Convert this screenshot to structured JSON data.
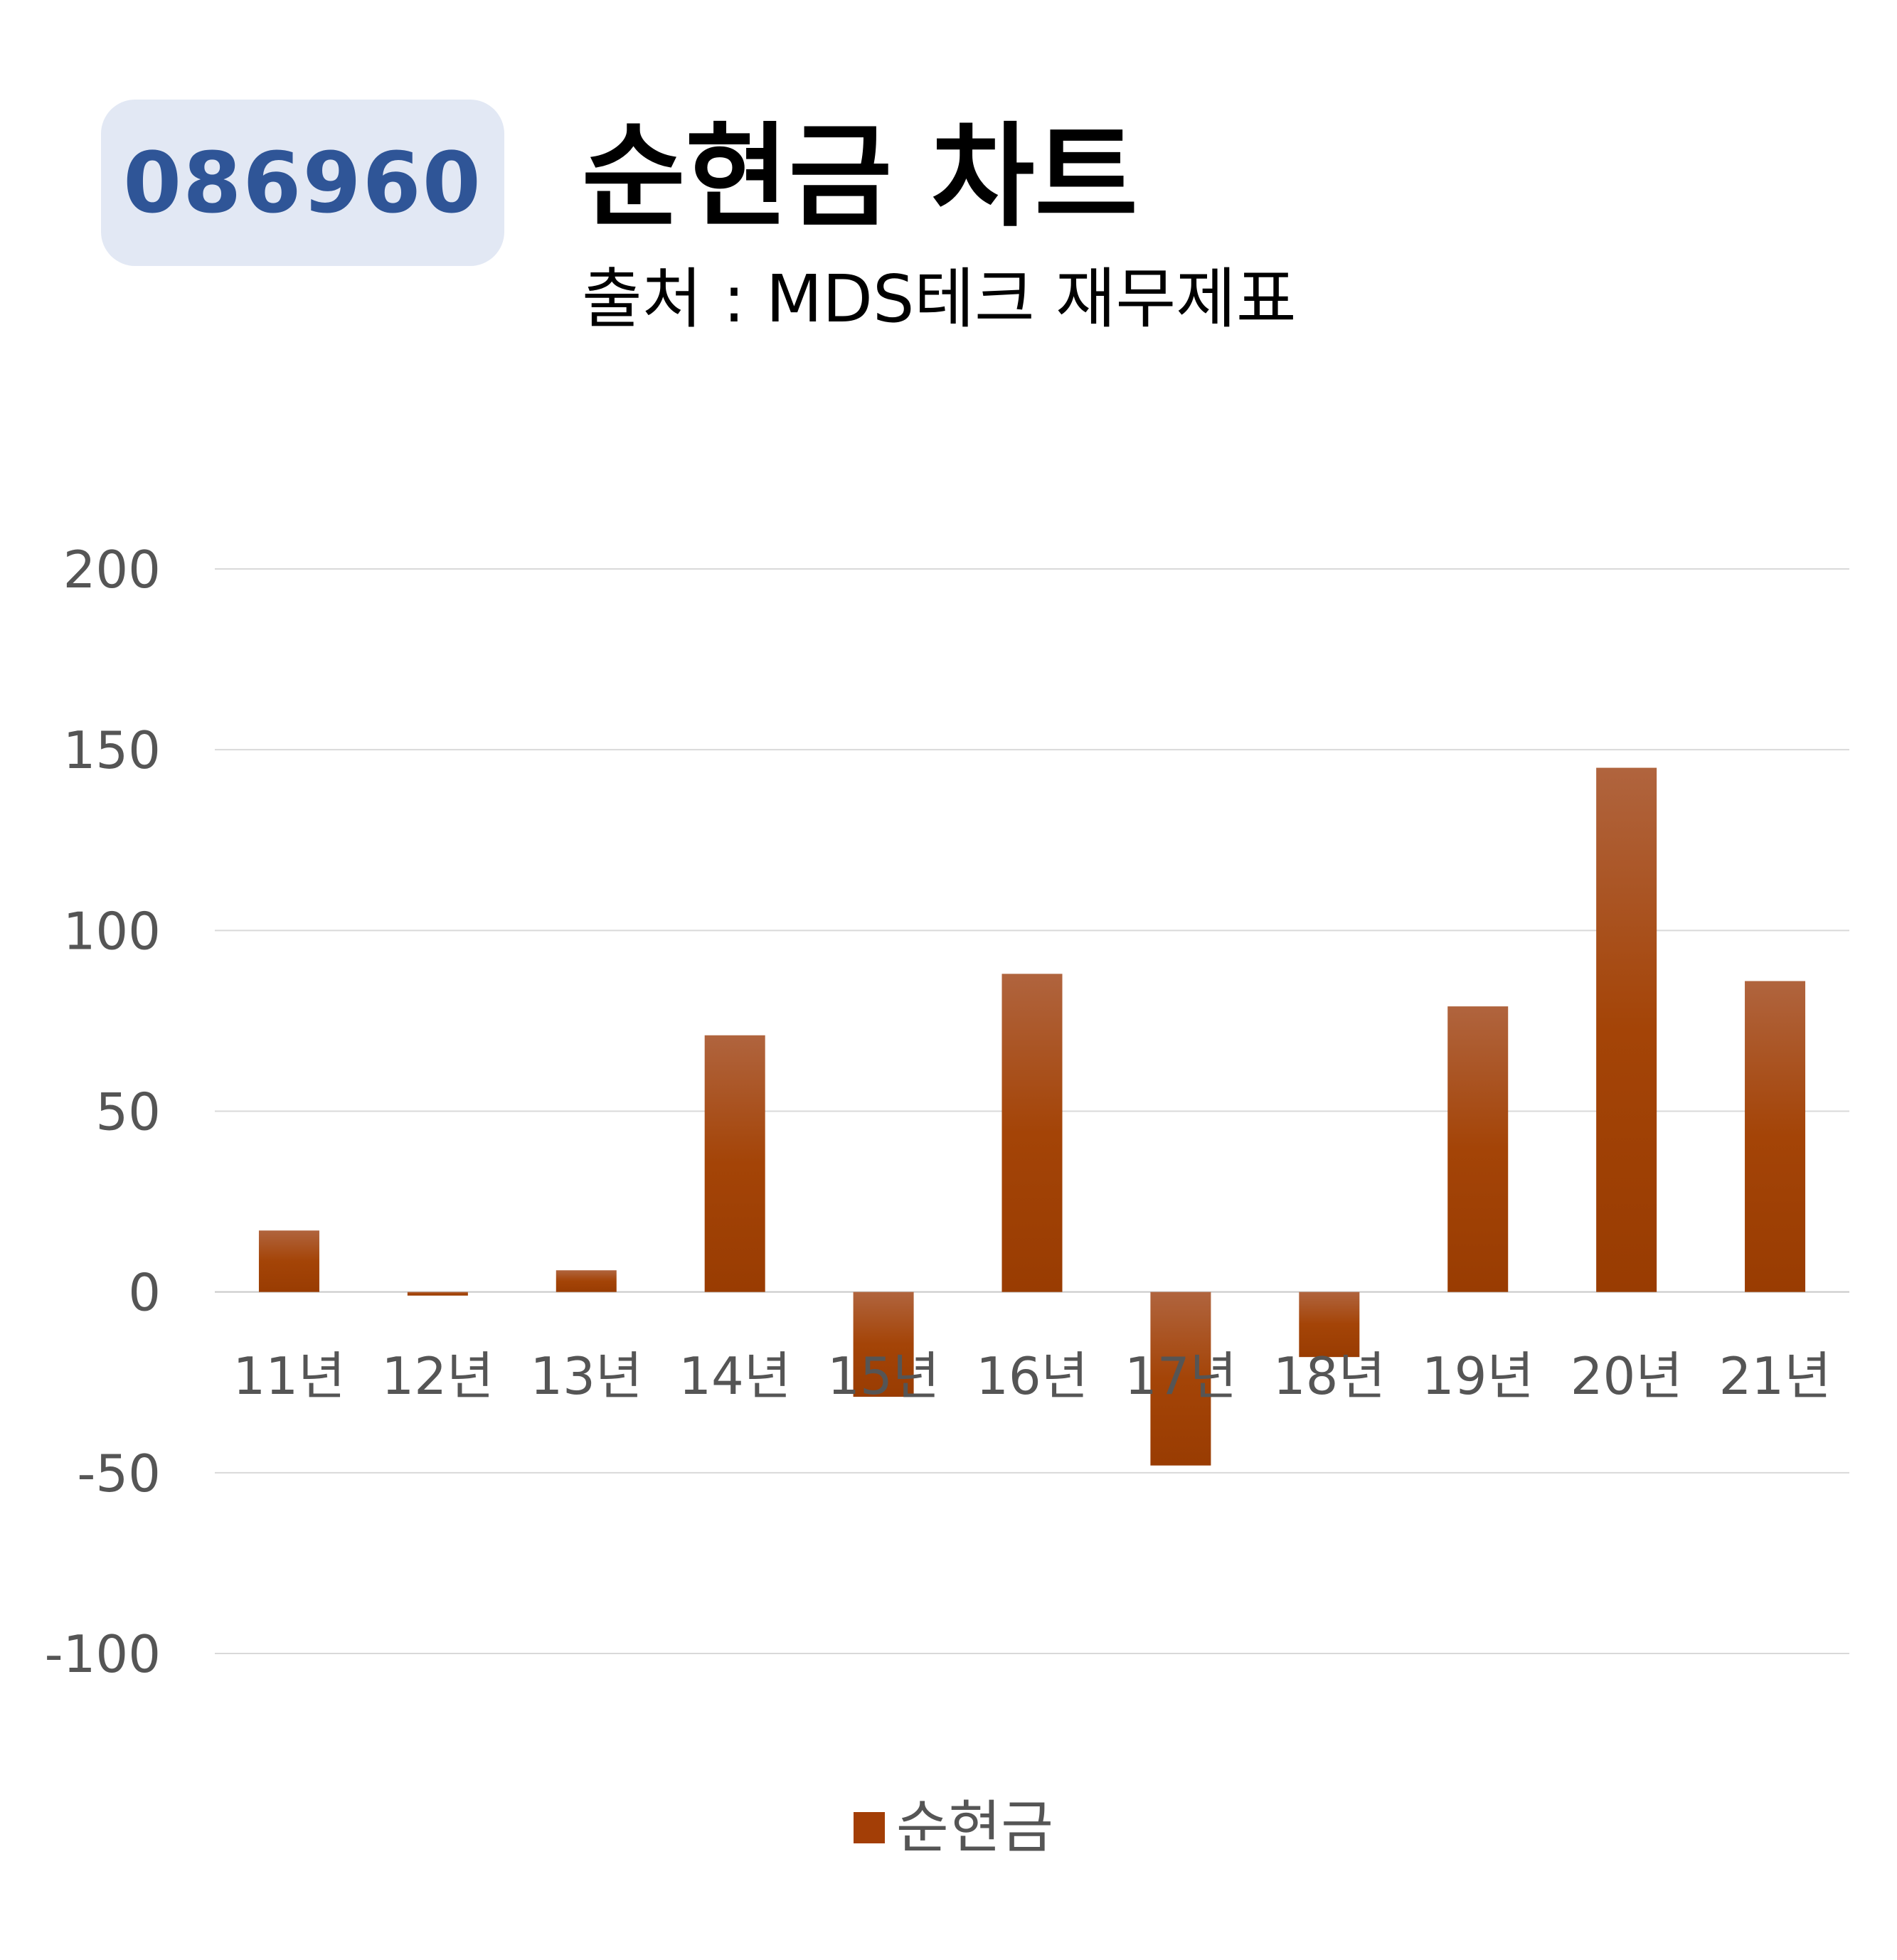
{
  "header": {
    "code": "086960",
    "title": "순현금 차트",
    "subtitle": "출처 : MDS테크 재무제표"
  },
  "colors": {
    "bar": "#a33e06",
    "bar_top": "#b0643e",
    "badge_bg": "#e2e8f4",
    "badge_text": "#2f5597",
    "grid": "#d9d9d9",
    "tick_text": "#555555"
  },
  "chart_data": {
    "type": "bar",
    "categories": [
      "11년",
      "12년",
      "13년",
      "14년",
      "15년",
      "16년",
      "17년",
      "18년",
      "19년",
      "20년",
      "21년"
    ],
    "series": [
      {
        "name": "순현금",
        "values": [
          17,
          -1,
          6,
          71,
          -29,
          88,
          -48,
          -18,
          79,
          145,
          86
        ]
      }
    ],
    "yticks": [
      200,
      150,
      100,
      50,
      0,
      -50,
      -100
    ],
    "ylim": [
      -100,
      200
    ],
    "grid": true,
    "legend_position": "bottom"
  }
}
